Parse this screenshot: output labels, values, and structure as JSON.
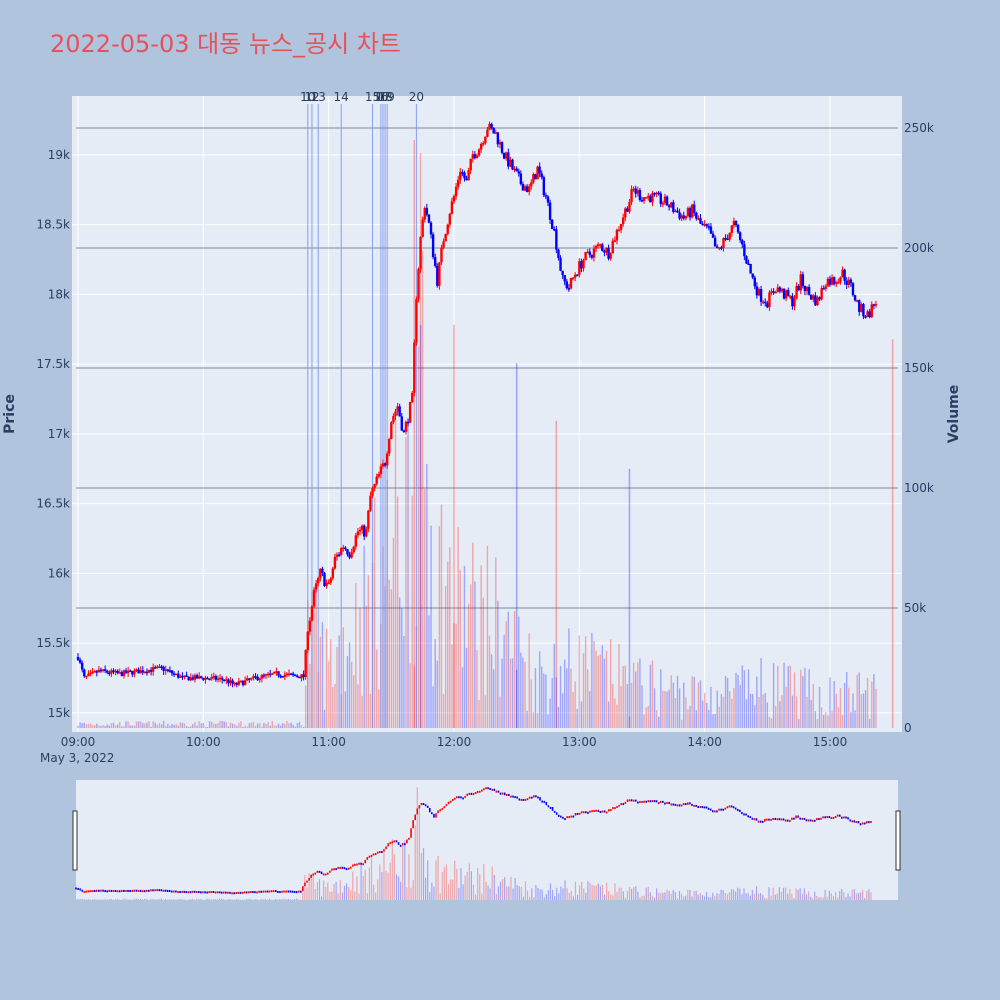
{
  "title": "2022-05-03 대동 뉴스_공시 차트",
  "colors": {
    "background": "#b0c4de",
    "plot_bg": "#e5ecf6",
    "up": "#ff0000",
    "down": "#0000ff",
    "title": "#e8505b",
    "axis_text": "#2a3f5f"
  },
  "chart_data": {
    "type": "candlestick",
    "title": "2022-05-03 대동 뉴스_공시 차트",
    "ylabel": "Price",
    "y2label": "Volume",
    "date_label": "May 3, 2022",
    "x_range": [
      "09:00",
      "15:35"
    ],
    "ylim": [
      14920,
      19480
    ],
    "y2lim": [
      0,
      262000
    ],
    "x_ticks": [
      "09:00",
      "10:00",
      "11:00",
      "12:00",
      "13:00",
      "14:00",
      "15:00"
    ],
    "y_ticks": [
      {
        "value": 15000,
        "label": "15k"
      },
      {
        "value": 15500,
        "label": "15.5k"
      },
      {
        "value": 16000,
        "label": "16k"
      },
      {
        "value": 16500,
        "label": "16.5k"
      },
      {
        "value": 17000,
        "label": "17k"
      },
      {
        "value": 17500,
        "label": "17.5k"
      },
      {
        "value": 18000,
        "label": "18k"
      },
      {
        "value": 18500,
        "label": "18.5k"
      },
      {
        "value": 19000,
        "label": "19k"
      }
    ],
    "y2_ticks": [
      {
        "value": 0,
        "label": "0"
      },
      {
        "value": 50000,
        "label": "50k"
      },
      {
        "value": 100000,
        "label": "100k"
      },
      {
        "value": 150000,
        "label": "150k"
      },
      {
        "value": 200000,
        "label": "200k"
      },
      {
        "value": 250000,
        "label": "250k"
      }
    ],
    "news_markers": [
      {
        "time": "10:50",
        "label": "10"
      },
      {
        "time": "10:52",
        "label": "12"
      },
      {
        "time": "10:55",
        "label": "13"
      },
      {
        "time": "11:06",
        "label": "14"
      },
      {
        "time": "11:21",
        "label": "15"
      },
      {
        "time": "11:25",
        "label": "16"
      },
      {
        "time": "11:26",
        "label": "17"
      },
      {
        "time": "11:27",
        "label": "18"
      },
      {
        "time": "11:28",
        "label": "19"
      },
      {
        "time": "11:42",
        "label": "20"
      }
    ],
    "price_path": [
      [
        "09:00",
        15400
      ],
      [
        "09:03",
        15250
      ],
      [
        "09:10",
        15300
      ],
      [
        "09:20",
        15280
      ],
      [
        "09:30",
        15300
      ],
      [
        "09:40",
        15320
      ],
      [
        "09:50",
        15250
      ],
      [
        "10:00",
        15250
      ],
      [
        "10:10",
        15240
      ],
      [
        "10:15",
        15200
      ],
      [
        "10:25",
        15250
      ],
      [
        "10:35",
        15280
      ],
      [
        "10:48",
        15260
      ],
      [
        "10:50",
        15600
      ],
      [
        "10:53",
        15850
      ],
      [
        "10:56",
        16000
      ],
      [
        "11:00",
        15900
      ],
      [
        "11:03",
        16100
      ],
      [
        "11:07",
        16200
      ],
      [
        "11:10",
        16150
      ],
      [
        "11:14",
        16300
      ],
      [
        "11:18",
        16300
      ],
      [
        "11:20",
        16550
      ],
      [
        "11:24",
        16700
      ],
      [
        "11:27",
        16800
      ],
      [
        "11:30",
        17100
      ],
      [
        "11:33",
        17200
      ],
      [
        "11:36",
        17000
      ],
      [
        "11:40",
        17250
      ],
      [
        "11:42",
        18000
      ],
      [
        "11:44",
        18400
      ],
      [
        "11:46",
        18650
      ],
      [
        "11:48",
        18500
      ],
      [
        "11:52",
        18100
      ],
      [
        "11:55",
        18400
      ],
      [
        "11:58",
        18600
      ],
      [
        "12:00",
        18700
      ],
      [
        "12:03",
        18900
      ],
      [
        "12:06",
        18800
      ],
      [
        "12:09",
        19000
      ],
      [
        "12:12",
        19050
      ],
      [
        "12:16",
        19200
      ],
      [
        "12:20",
        19150
      ],
      [
        "12:24",
        19000
      ],
      [
        "12:28",
        18900
      ],
      [
        "12:32",
        18800
      ],
      [
        "12:36",
        18750
      ],
      [
        "12:40",
        18900
      ],
      [
        "12:44",
        18700
      ],
      [
        "12:48",
        18450
      ],
      [
        "12:52",
        18100
      ],
      [
        "12:55",
        18050
      ],
      [
        "12:58",
        18150
      ],
      [
        "13:02",
        18250
      ],
      [
        "13:06",
        18300
      ],
      [
        "13:10",
        18350
      ],
      [
        "13:14",
        18300
      ],
      [
        "13:18",
        18450
      ],
      [
        "13:22",
        18600
      ],
      [
        "13:26",
        18750
      ],
      [
        "13:30",
        18700
      ],
      [
        "13:34",
        18700
      ],
      [
        "13:38",
        18680
      ],
      [
        "13:42",
        18650
      ],
      [
        "13:46",
        18600
      ],
      [
        "13:50",
        18550
      ],
      [
        "13:54",
        18600
      ],
      [
        "13:58",
        18500
      ],
      [
        "14:02",
        18450
      ],
      [
        "14:06",
        18300
      ],
      [
        "14:10",
        18400
      ],
      [
        "14:14",
        18500
      ],
      [
        "14:18",
        18350
      ],
      [
        "14:22",
        18150
      ],
      [
        "14:26",
        18000
      ],
      [
        "14:30",
        17950
      ],
      [
        "14:34",
        18050
      ],
      [
        "14:38",
        18000
      ],
      [
        "14:42",
        17950
      ],
      [
        "14:46",
        18100
      ],
      [
        "14:50",
        18000
      ],
      [
        "14:54",
        17950
      ],
      [
        "14:58",
        18100
      ],
      [
        "15:02",
        18100
      ],
      [
        "15:06",
        18150
      ],
      [
        "15:10",
        18050
      ],
      [
        "15:14",
        17900
      ],
      [
        "15:18",
        17850
      ],
      [
        "15:22",
        17950
      ]
    ],
    "volume_profile": [
      [
        "09:00",
        2000
      ],
      [
        "10:48",
        2000
      ],
      [
        "10:50",
        45000
      ],
      [
        "11:00",
        30000
      ],
      [
        "11:20",
        60000
      ],
      [
        "11:28",
        80000
      ],
      [
        "11:40",
        110000
      ],
      [
        "11:44",
        160000
      ],
      [
        "11:50",
        80000
      ],
      [
        "12:00",
        60000
      ],
      [
        "12:20",
        50000
      ],
      [
        "12:40",
        25000
      ],
      [
        "13:00",
        30000
      ],
      [
        "13:30",
        20000
      ],
      [
        "14:00",
        15000
      ],
      [
        "14:30",
        20000
      ],
      [
        "15:00",
        15000
      ],
      [
        "15:22",
        18000
      ]
    ],
    "volume_spikes": [
      {
        "time": "11:41",
        "value": 245000
      },
      {
        "time": "11:44",
        "value": 168000
      },
      {
        "time": "12:00",
        "value": 168000
      },
      {
        "time": "12:30",
        "value": 152000
      },
      {
        "time": "12:49",
        "value": 128000
      },
      {
        "time": "13:24",
        "value": 108000
      },
      {
        "time": "15:30",
        "value": 162000
      }
    ]
  }
}
